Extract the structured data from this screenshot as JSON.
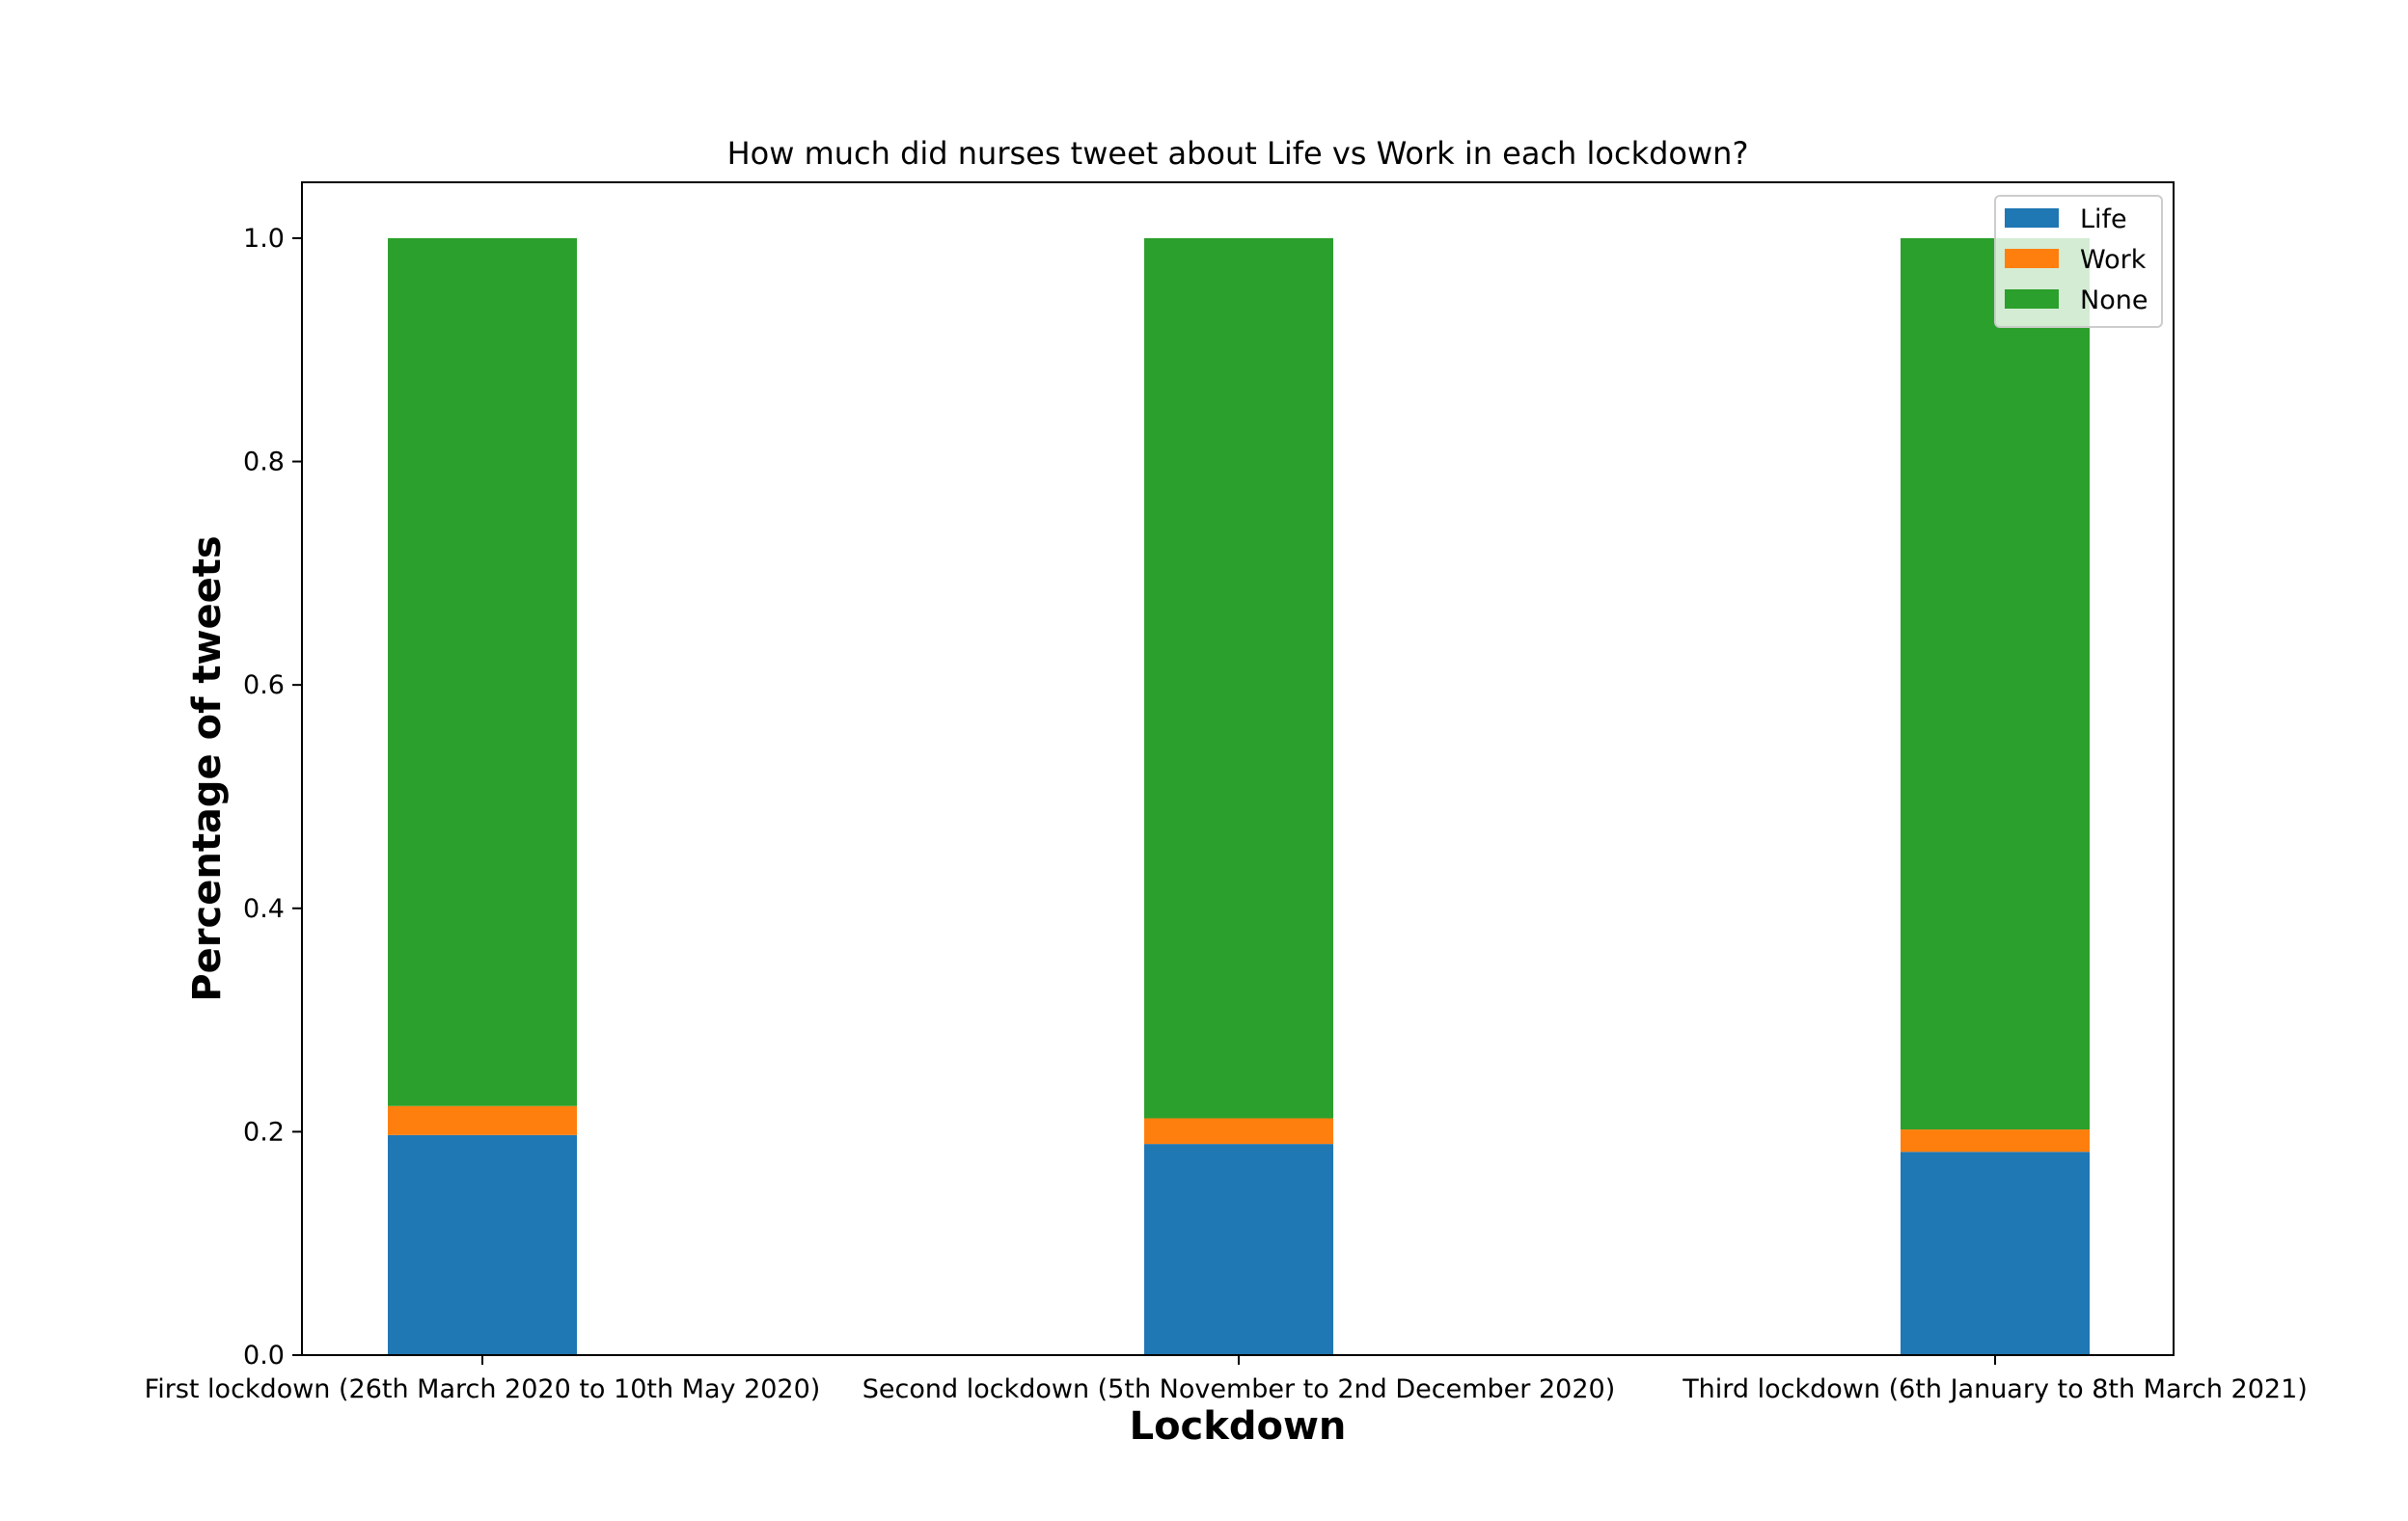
{
  "chart_data": {
    "type": "bar",
    "stacked": true,
    "title": "How much did nurses tweet about Life vs Work in each lockdown?",
    "xlabel": "Lockdown",
    "ylabel": "Percentage of tweets",
    "categories": [
      "First lockdown (26th March 2020 to 10th May 2020)",
      "Second lockdown (5th November to 2nd December 2020)",
      "Third lockdown (6th January to 8th March 2021)"
    ],
    "series": [
      {
        "name": "Life",
        "color": "#1f77b4",
        "values": [
          0.197,
          0.189,
          0.182
        ]
      },
      {
        "name": "Work",
        "color": "#ff7f0e",
        "values": [
          0.026,
          0.023,
          0.02
        ]
      },
      {
        "name": "None",
        "color": "#2ca02c",
        "values": [
          0.777,
          0.788,
          0.798
        ]
      }
    ],
    "ylim": [
      0,
      1.05
    ],
    "yticks": [
      0.0,
      0.2,
      0.4,
      0.6,
      0.8,
      1.0
    ],
    "ytick_labels": [
      "0.0",
      "0.2",
      "0.4",
      "0.6",
      "0.8",
      "1.0"
    ],
    "grid": false,
    "legend_position": "top-right"
  }
}
